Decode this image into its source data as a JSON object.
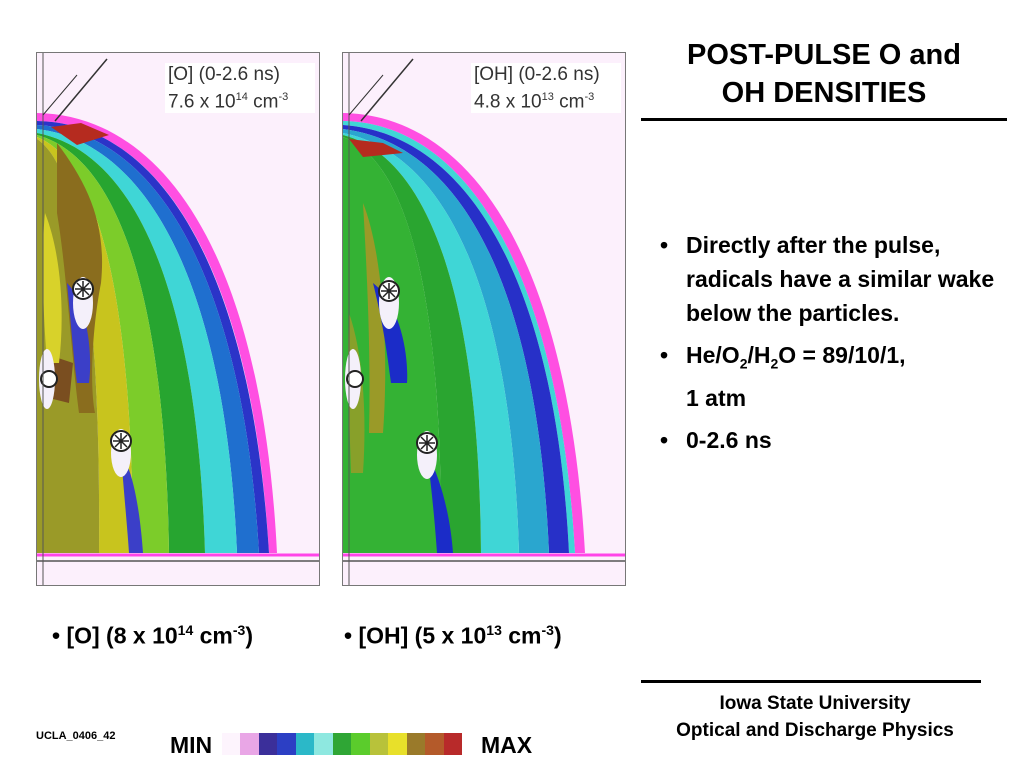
{
  "title": {
    "line1": "POST-PULSE O and",
    "line2": "OH DENSITIES"
  },
  "panels": [
    {
      "label_line1": "[O] (0-2.6 ns)",
      "label_mant": "7.6 x 10",
      "label_exp": "14",
      "label_unit": " cm",
      "label_unit_exp": "-3",
      "caption_species": "[O] (8 x 10",
      "caption_exp": "14",
      "caption_unit": " cm",
      "caption_unit_exp": "-3",
      "caption_close": ")"
    },
    {
      "label_line1": "[OH] (0-2.6 ns)",
      "label_mant": "4.8 x 10",
      "label_exp": "13",
      "label_unit": " cm",
      "label_unit_exp": "-3",
      "caption_species": "[OH] (5 x 10",
      "caption_exp": "13",
      "caption_unit": " cm",
      "caption_unit_exp": "-3",
      "caption_close": ")"
    }
  ],
  "bullets": {
    "b1": "Directly after the pulse, radicals have a similar wake below the particles.",
    "b2_a": "He/O",
    "b2_sub1": "2",
    "b2_b": "/H",
    "b2_sub2": "2",
    "b2_c": "O = 89/10/1,",
    "b2_d": "1 atm",
    "b3": "0-2.6 ns",
    "marker": "•"
  },
  "footer": {
    "line1": "Iowa State University",
    "line2": "Optical and Discharge Physics"
  },
  "slide_code": "UCLA_0406_42",
  "scale": {
    "min_label": "MIN",
    "max_label": "MAX",
    "colors": [
      "#fdf4fd",
      "#e9a6e6",
      "#3b2f9a",
      "#2c3fc4",
      "#2bb8c8",
      "#8ee8e0",
      "#2fa635",
      "#5bcc2c",
      "#b8c23a",
      "#e8e02a",
      "#9a7a2a",
      "#b45a2a",
      "#b82a2a"
    ]
  }
}
